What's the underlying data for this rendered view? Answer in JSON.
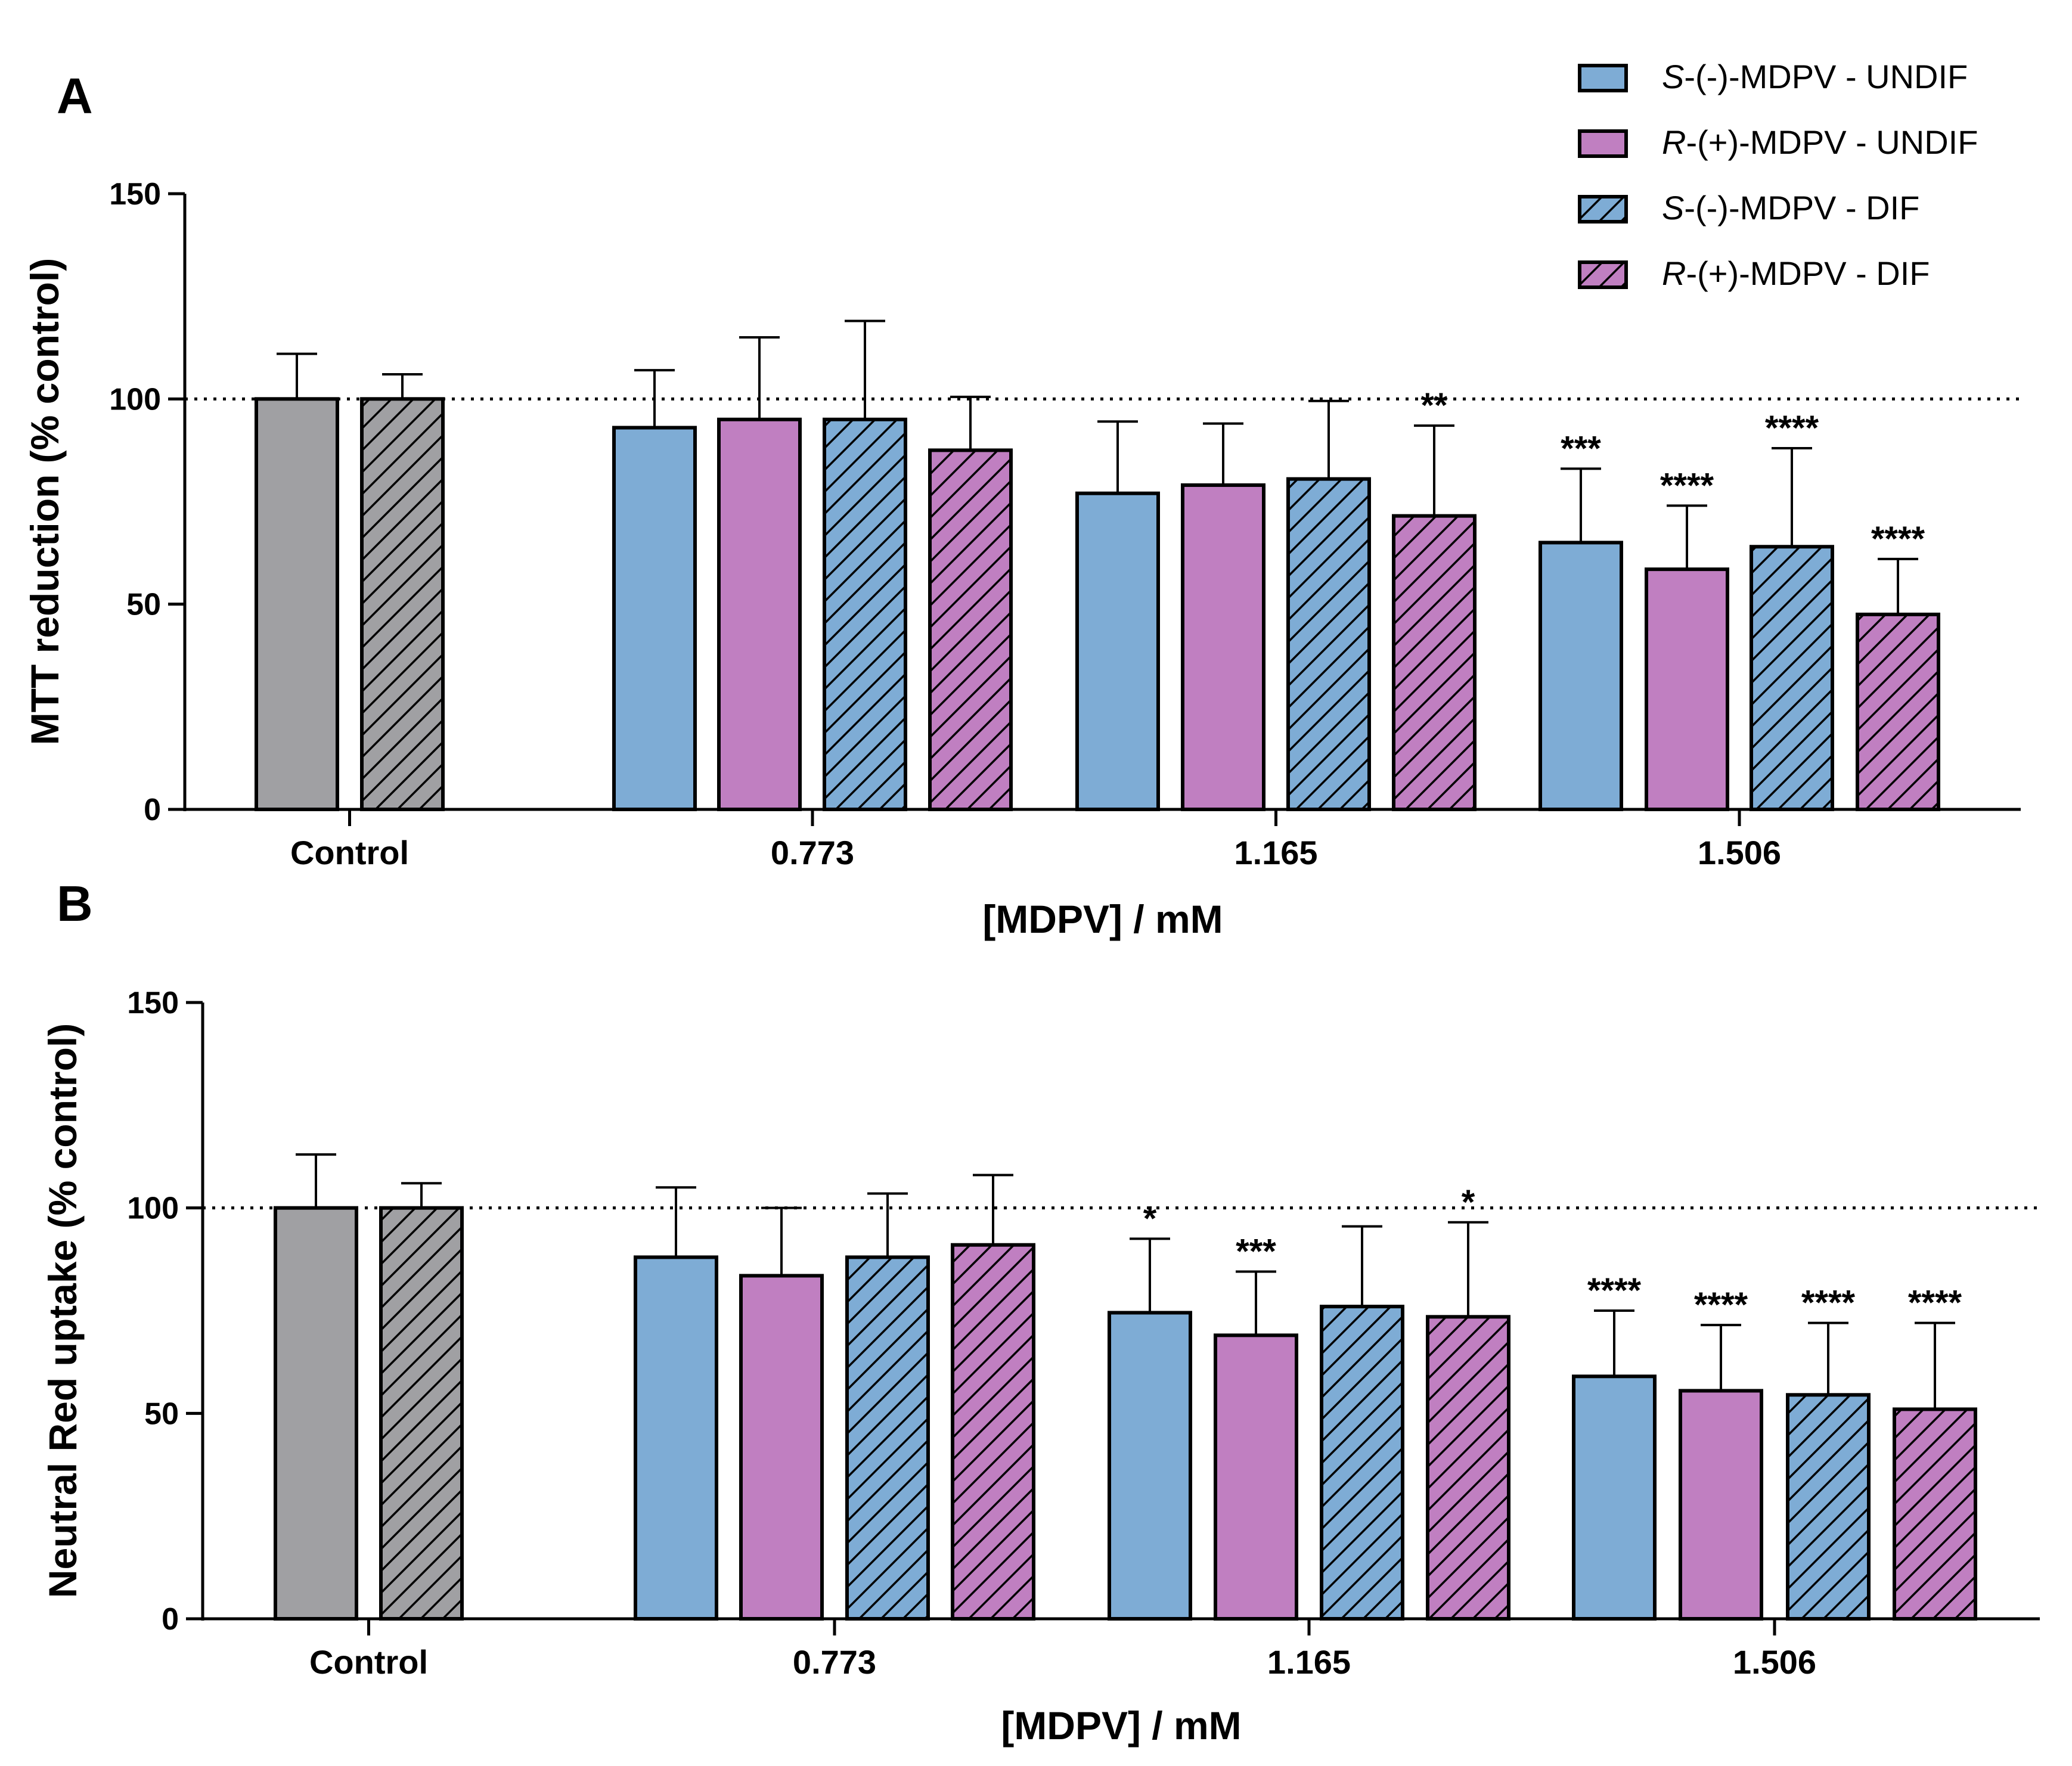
{
  "colors": {
    "control": "#a0a0a3",
    "s_undif": "#7eacd5",
    "r_undif": "#c07fc1",
    "hatch": "#000000",
    "axis": "#000000"
  },
  "legend": [
    {
      "prefix": "S",
      "rest": "-(-)-MDPV - UNDIF",
      "fill": "s_undif",
      "hatched": false
    },
    {
      "prefix": "R",
      "rest": "-(+)-MDPV - UNDIF",
      "fill": "r_undif",
      "hatched": false
    },
    {
      "prefix": "S",
      "rest": "-(-)-MDPV - DIF",
      "fill": "s_undif",
      "hatched": true
    },
    {
      "prefix": "R",
      "rest": "-(+)-MDPV - DIF",
      "fill": "r_undif",
      "hatched": true
    }
  ],
  "chart_data": [
    {
      "panel": "A",
      "type": "bar",
      "xlabel": "[MDPV] / mM",
      "ylabel": "MTT reduction (% control)",
      "ylim": [
        0,
        150
      ],
      "yticks": [
        "0",
        "50",
        "100",
        "150"
      ],
      "reference_line": 100,
      "categories": [
        "Control",
        "0.773",
        "1.165",
        "1.506"
      ],
      "groups": [
        {
          "category": "Control",
          "bars": [
            {
              "series": "control",
              "value": 100,
              "err": 11,
              "hatched": false,
              "sig": ""
            },
            {
              "series": "control",
              "value": 100,
              "err": 6,
              "hatched": true,
              "sig": ""
            }
          ]
        },
        {
          "category": "0.773",
          "bars": [
            {
              "series": "s_undif",
              "value": 93,
              "err": 14,
              "hatched": false,
              "sig": ""
            },
            {
              "series": "r_undif",
              "value": 95,
              "err": 20,
              "hatched": false,
              "sig": ""
            },
            {
              "series": "s_undif",
              "value": 95,
              "err": 24,
              "hatched": true,
              "sig": ""
            },
            {
              "series": "r_undif",
              "value": 87.5,
              "err": 13,
              "hatched": true,
              "sig": ""
            }
          ]
        },
        {
          "category": "1.165",
          "bars": [
            {
              "series": "s_undif",
              "value": 77,
              "err": 17.5,
              "hatched": false,
              "sig": ""
            },
            {
              "series": "r_undif",
              "value": 79,
              "err": 15,
              "hatched": false,
              "sig": ""
            },
            {
              "series": "s_undif",
              "value": 80.5,
              "err": 19,
              "hatched": true,
              "sig": ""
            },
            {
              "series": "r_undif",
              "value": 71.5,
              "err": 22,
              "hatched": true,
              "sig": "**"
            }
          ]
        },
        {
          "category": "1.506",
          "bars": [
            {
              "series": "s_undif",
              "value": 65,
              "err": 18,
              "hatched": false,
              "sig": "***"
            },
            {
              "series": "r_undif",
              "value": 58.5,
              "err": 15.5,
              "hatched": false,
              "sig": "****"
            },
            {
              "series": "s_undif",
              "value": 64,
              "err": 24,
              "hatched": true,
              "sig": "****"
            },
            {
              "series": "r_undif",
              "value": 47.5,
              "err": 13.5,
              "hatched": true,
              "sig": "****"
            }
          ]
        }
      ]
    },
    {
      "panel": "B",
      "type": "bar",
      "xlabel": "[MDPV] / mM",
      "ylabel": "Neutral Red uptake (% control)",
      "ylim": [
        0,
        150
      ],
      "yticks": [
        "0",
        "50",
        "100",
        "150"
      ],
      "reference_line": 100,
      "categories": [
        "Control",
        "0.773",
        "1.165",
        "1.506"
      ],
      "groups": [
        {
          "category": "Control",
          "bars": [
            {
              "series": "control",
              "value": 100,
              "err": 13,
              "hatched": false,
              "sig": ""
            },
            {
              "series": "control",
              "value": 100,
              "err": 6,
              "hatched": true,
              "sig": ""
            }
          ]
        },
        {
          "category": "0.773",
          "bars": [
            {
              "series": "s_undif",
              "value": 88,
              "err": 17,
              "hatched": false,
              "sig": ""
            },
            {
              "series": "r_undif",
              "value": 83.5,
              "err": 16.5,
              "hatched": false,
              "sig": ""
            },
            {
              "series": "s_undif",
              "value": 88,
              "err": 15.5,
              "hatched": true,
              "sig": ""
            },
            {
              "series": "r_undif",
              "value": 91,
              "err": 17,
              "hatched": true,
              "sig": ""
            }
          ]
        },
        {
          "category": "1.165",
          "bars": [
            {
              "series": "s_undif",
              "value": 74.5,
              "err": 18,
              "hatched": false,
              "sig": "*"
            },
            {
              "series": "r_undif",
              "value": 69,
              "err": 15.5,
              "hatched": false,
              "sig": "***"
            },
            {
              "series": "s_undif",
              "value": 76,
              "err": 19.5,
              "hatched": true,
              "sig": ""
            },
            {
              "series": "r_undif",
              "value": 73.5,
              "err": 23,
              "hatched": true,
              "sig": "*"
            }
          ]
        },
        {
          "category": "1.506",
          "bars": [
            {
              "series": "s_undif",
              "value": 59,
              "err": 16,
              "hatched": false,
              "sig": "****"
            },
            {
              "series": "r_undif",
              "value": 55.5,
              "err": 16,
              "hatched": false,
              "sig": "****"
            },
            {
              "series": "s_undif",
              "value": 54.5,
              "err": 17.5,
              "hatched": true,
              "sig": "****"
            },
            {
              "series": "r_undif",
              "value": 51,
              "err": 21,
              "hatched": true,
              "sig": "****"
            }
          ]
        }
      ]
    }
  ]
}
